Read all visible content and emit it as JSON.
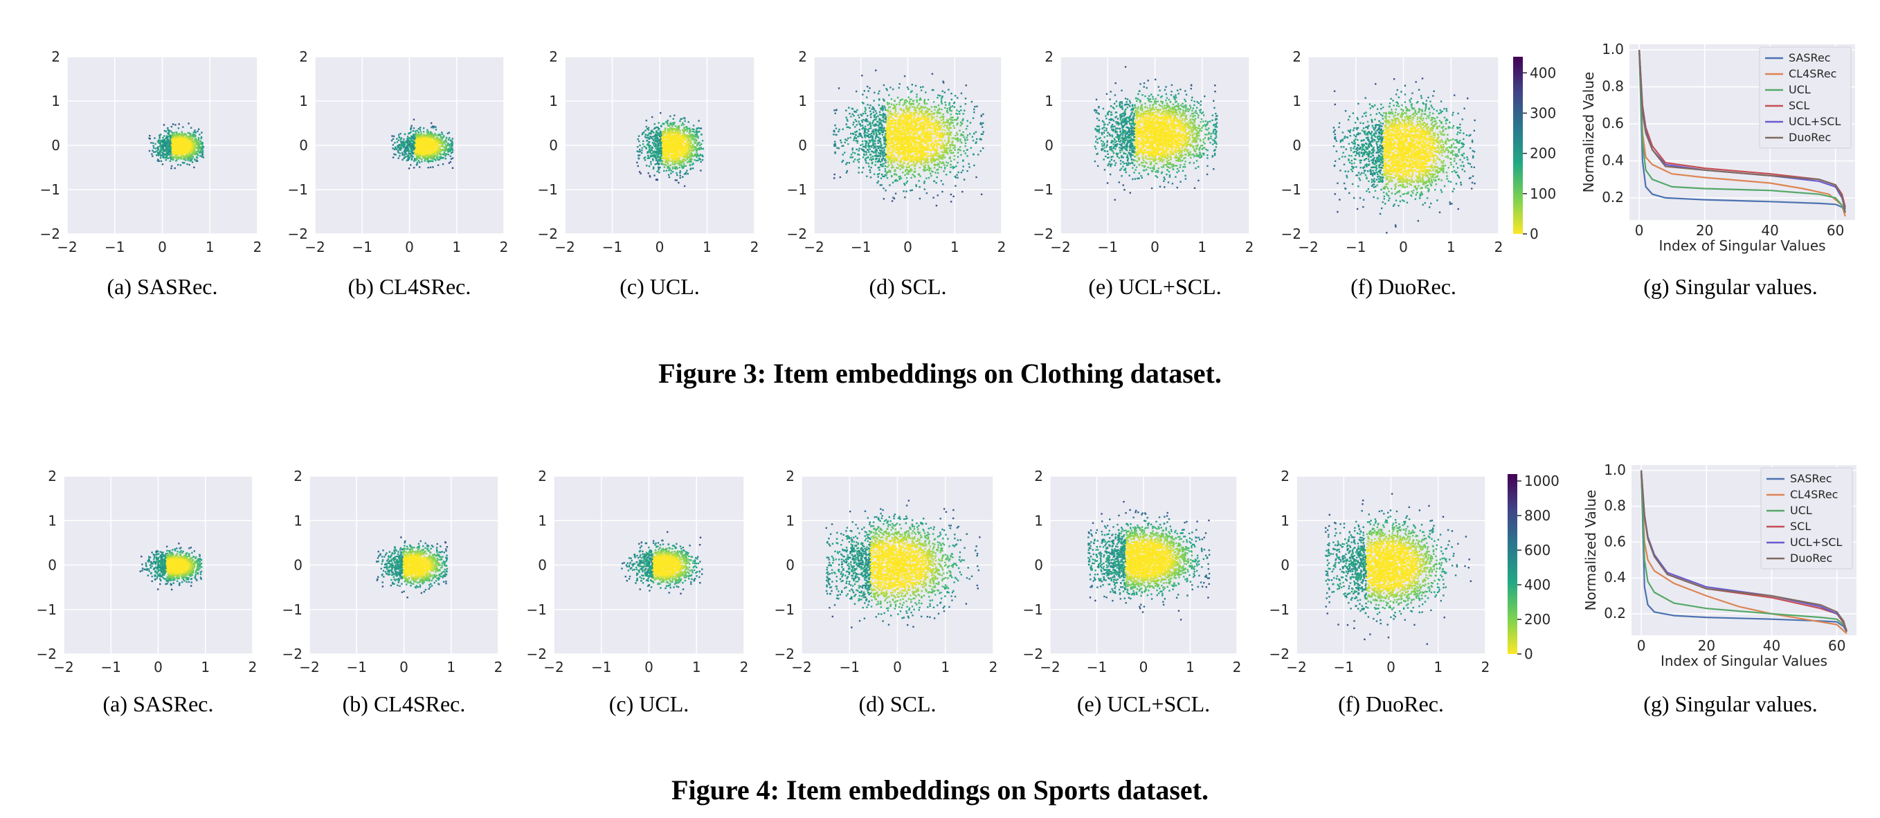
{
  "figures": [
    {
      "title": "Figure 3: Item embeddings on Clothing dataset.",
      "colorbar_ticks": [
        "0",
        "100",
        "200",
        "300",
        "400"
      ],
      "colorbar_max": 440,
      "panels": [
        {
          "caption": "(a)  SASRec.",
          "cloud": {
            "cx": 0.35,
            "cy": 0.0,
            "sx": 0.22,
            "sy": 0.16,
            "clip_left": -0.3,
            "clip_right": 0.85,
            "n": 1300
          }
        },
        {
          "caption": "(b)  CL4SRec.",
          "cloud": {
            "cx": 0.3,
            "cy": 0.0,
            "sx": 0.25,
            "sy": 0.16,
            "clip_left": -0.4,
            "clip_right": 0.9,
            "n": 1300
          }
        },
        {
          "caption": "(c)  UCL.",
          "cloud": {
            "cx": 0.25,
            "cy": 0.0,
            "sx": 0.28,
            "sy": 0.25,
            "clip_left": -0.5,
            "clip_right": 0.9,
            "n": 1400
          }
        },
        {
          "caption": "(d)  SCL.",
          "cloud": {
            "cx": 0.0,
            "cy": 0.2,
            "sx": 0.6,
            "sy": 0.45,
            "clip_left": -1.6,
            "clip_right": 1.6,
            "n": 2600
          }
        },
        {
          "caption": "(e)  UCL+SCL.",
          "cloud": {
            "cx": 0.0,
            "cy": 0.25,
            "sx": 0.55,
            "sy": 0.4,
            "clip_left": -1.3,
            "clip_right": 1.3,
            "n": 2600
          }
        },
        {
          "caption": "(f)  DuoRec.",
          "cloud": {
            "cx": 0.0,
            "cy": -0.1,
            "sx": 0.55,
            "sy": 0.5,
            "clip_left": -1.5,
            "clip_right": 1.5,
            "n": 2600
          }
        }
      ],
      "chart_data": {
        "type": "line",
        "caption": "(g)  Singular values.",
        "xlabel": "Index of Singular Values",
        "ylabel": "Normalized Value",
        "xticks": [
          0,
          20,
          40,
          60
        ],
        "yticks": [
          0.2,
          0.4,
          0.6,
          0.8,
          1.0
        ],
        "xlim": [
          -3,
          66
        ],
        "ylim": [
          0.08,
          1.03
        ],
        "series": [
          {
            "name": "SASRec",
            "color": "#4c72b0",
            "points": [
              [
                0,
                1.0
              ],
              [
                1,
                0.4
              ],
              [
                2,
                0.26
              ],
              [
                4,
                0.22
              ],
              [
                8,
                0.2
              ],
              [
                20,
                0.19
              ],
              [
                40,
                0.18
              ],
              [
                55,
                0.17
              ],
              [
                60,
                0.165
              ],
              [
                62,
                0.15
              ],
              [
                63,
                0.12
              ]
            ]
          },
          {
            "name": "CL4SRec",
            "color": "#dd8452",
            "points": [
              [
                0,
                1.0
              ],
              [
                1,
                0.55
              ],
              [
                2,
                0.42
              ],
              [
                4,
                0.38
              ],
              [
                10,
                0.33
              ],
              [
                20,
                0.31
              ],
              [
                40,
                0.28
              ],
              [
                50,
                0.25
              ],
              [
                58,
                0.22
              ],
              [
                62,
                0.16
              ],
              [
                63,
                0.1
              ]
            ]
          },
          {
            "name": "UCL",
            "color": "#55a868",
            "points": [
              [
                0,
                1.0
              ],
              [
                1,
                0.5
              ],
              [
                2,
                0.35
              ],
              [
                4,
                0.3
              ],
              [
                10,
                0.26
              ],
              [
                20,
                0.25
              ],
              [
                40,
                0.24
              ],
              [
                55,
                0.22
              ],
              [
                60,
                0.2
              ],
              [
                62,
                0.16
              ],
              [
                63,
                0.12
              ]
            ]
          },
          {
            "name": "SCL",
            "color": "#c44e52",
            "points": [
              [
                0,
                1.0
              ],
              [
                1,
                0.7
              ],
              [
                2,
                0.58
              ],
              [
                4,
                0.48
              ],
              [
                8,
                0.39
              ],
              [
                20,
                0.36
              ],
              [
                40,
                0.33
              ],
              [
                55,
                0.3
              ],
              [
                60,
                0.27
              ],
              [
                62,
                0.22
              ],
              [
                63,
                0.15
              ]
            ]
          },
          {
            "name": "UCL+SCL",
            "color": "#6a5acd",
            "points": [
              [
                0,
                1.0
              ],
              [
                1,
                0.68
              ],
              [
                2,
                0.56
              ],
              [
                4,
                0.46
              ],
              [
                8,
                0.38
              ],
              [
                20,
                0.35
              ],
              [
                40,
                0.32
              ],
              [
                55,
                0.29
              ],
              [
                60,
                0.26
              ],
              [
                62,
                0.2
              ],
              [
                63,
                0.14
              ]
            ]
          },
          {
            "name": "DuoRec",
            "color": "#7f6a5e",
            "points": [
              [
                0,
                1.0
              ],
              [
                1,
                0.66
              ],
              [
                2,
                0.55
              ],
              [
                4,
                0.46
              ],
              [
                8,
                0.37
              ],
              [
                20,
                0.35
              ],
              [
                40,
                0.32
              ],
              [
                55,
                0.3
              ],
              [
                60,
                0.27
              ],
              [
                62,
                0.21
              ],
              [
                63,
                0.12
              ]
            ]
          }
        ]
      }
    },
    {
      "title": "Figure 4: Item embeddings on Sports dataset.",
      "colorbar_ticks": [
        "0",
        "200",
        "400",
        "600",
        "800",
        "1000"
      ],
      "colorbar_max": 1040,
      "panels": [
        {
          "caption": "(a)  SASRec.",
          "cloud": {
            "cx": 0.35,
            "cy": 0.0,
            "sx": 0.25,
            "sy": 0.15,
            "clip_left": -0.4,
            "clip_right": 0.9,
            "n": 1300
          }
        },
        {
          "caption": "(b)  CL4SRec.",
          "cloud": {
            "cx": 0.2,
            "cy": 0.0,
            "sx": 0.3,
            "sy": 0.2,
            "clip_left": -0.6,
            "clip_right": 0.9,
            "n": 1400
          }
        },
        {
          "caption": "(c)  UCL.",
          "cloud": {
            "cx": 0.3,
            "cy": 0.0,
            "sx": 0.3,
            "sy": 0.2,
            "clip_left": -0.6,
            "clip_right": 1.1,
            "n": 1400
          }
        },
        {
          "caption": "(d)  SCL.",
          "cloud": {
            "cx": -0.1,
            "cy": 0.0,
            "sx": 0.6,
            "sy": 0.45,
            "clip_left": -1.5,
            "clip_right": 1.7,
            "n": 2600
          }
        },
        {
          "caption": "(e)  UCL+SCL.",
          "cloud": {
            "cx": 0.0,
            "cy": 0.15,
            "sx": 0.5,
            "sy": 0.35,
            "clip_left": -1.2,
            "clip_right": 1.4,
            "n": 2600
          }
        },
        {
          "caption": "(f)  DuoRec.",
          "cloud": {
            "cx": -0.1,
            "cy": 0.0,
            "sx": 0.55,
            "sy": 0.45,
            "clip_left": -1.4,
            "clip_right": 1.7,
            "n": 2600
          }
        }
      ],
      "chart_data": {
        "type": "line",
        "caption": "(g)  Singular values.",
        "xlabel": "Index of Singular Values",
        "ylabel": "Normalized Value",
        "xticks": [
          0,
          20,
          40,
          60
        ],
        "yticks": [
          0.2,
          0.4,
          0.6,
          0.8,
          1.0
        ],
        "xlim": [
          -3,
          66
        ],
        "ylim": [
          0.08,
          1.03
        ],
        "series": [
          {
            "name": "SASRec",
            "color": "#4c72b0",
            "points": [
              [
                0,
                1.0
              ],
              [
                1,
                0.35
              ],
              [
                2,
                0.25
              ],
              [
                4,
                0.21
              ],
              [
                10,
                0.19
              ],
              [
                20,
                0.18
              ],
              [
                40,
                0.17
              ],
              [
                55,
                0.16
              ],
              [
                60,
                0.155
              ],
              [
                62,
                0.13
              ],
              [
                63,
                0.1
              ]
            ]
          },
          {
            "name": "CL4SRec",
            "color": "#dd8452",
            "points": [
              [
                0,
                1.0
              ],
              [
                1,
                0.6
              ],
              [
                2,
                0.5
              ],
              [
                4,
                0.44
              ],
              [
                10,
                0.37
              ],
              [
                20,
                0.3
              ],
              [
                30,
                0.24
              ],
              [
                40,
                0.2
              ],
              [
                50,
                0.17
              ],
              [
                60,
                0.14
              ],
              [
                63,
                0.09
              ]
            ]
          },
          {
            "name": "UCL",
            "color": "#55a868",
            "points": [
              [
                0,
                1.0
              ],
              [
                1,
                0.5
              ],
              [
                2,
                0.38
              ],
              [
                4,
                0.32
              ],
              [
                10,
                0.26
              ],
              [
                20,
                0.23
              ],
              [
                40,
                0.2
              ],
              [
                55,
                0.18
              ],
              [
                60,
                0.17
              ],
              [
                62,
                0.14
              ],
              [
                63,
                0.11
              ]
            ]
          },
          {
            "name": "SCL",
            "color": "#c44e52",
            "points": [
              [
                0,
                1.0
              ],
              [
                1,
                0.75
              ],
              [
                2,
                0.62
              ],
              [
                4,
                0.52
              ],
              [
                8,
                0.42
              ],
              [
                20,
                0.34
              ],
              [
                40,
                0.29
              ],
              [
                55,
                0.23
              ],
              [
                60,
                0.2
              ],
              [
                62,
                0.15
              ],
              [
                63,
                0.1
              ]
            ]
          },
          {
            "name": "UCL+SCL",
            "color": "#6a5acd",
            "points": [
              [
                0,
                1.0
              ],
              [
                1,
                0.75
              ],
              [
                2,
                0.63
              ],
              [
                4,
                0.53
              ],
              [
                8,
                0.43
              ],
              [
                20,
                0.35
              ],
              [
                40,
                0.3
              ],
              [
                55,
                0.24
              ],
              [
                60,
                0.2
              ],
              [
                62,
                0.16
              ],
              [
                63,
                0.1
              ]
            ]
          },
          {
            "name": "DuoRec",
            "color": "#7f6a5e",
            "points": [
              [
                0,
                1.0
              ],
              [
                1,
                0.74
              ],
              [
                2,
                0.62
              ],
              [
                4,
                0.52
              ],
              [
                8,
                0.42
              ],
              [
                20,
                0.34
              ],
              [
                40,
                0.3
              ],
              [
                55,
                0.25
              ],
              [
                60,
                0.21
              ],
              [
                62,
                0.16
              ],
              [
                63,
                0.1
              ]
            ]
          }
        ]
      }
    }
  ],
  "scatter_axis": {
    "ticks": [
      "−2",
      "−1",
      "0",
      "1",
      "2"
    ],
    "lim": [
      -2,
      2
    ]
  }
}
